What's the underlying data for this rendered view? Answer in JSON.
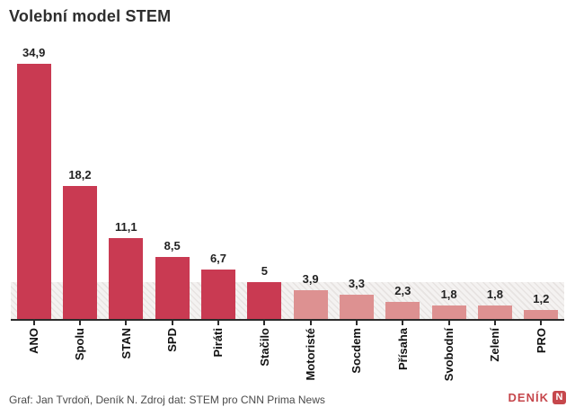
{
  "title": "Volební model STEM",
  "footer": {
    "credit": "Graf: Jan Tvrdoň, Deník N. Zdroj dat: STEM pro CNN Prima News",
    "logo_text": "DENÍK",
    "logo_badge": "N"
  },
  "colors": {
    "bar_above_threshold": "#c93a52",
    "bar_below_threshold": "#dd9191",
    "threshold_band": "#f4f2f1",
    "axis": "#2b2b2b",
    "title_text": "#2e2e2e",
    "footer_text": "#4a4a4a",
    "logo_red": "#c6474c"
  },
  "chart_data": {
    "type": "bar",
    "title": "Volební model STEM",
    "categories": [
      "ANO",
      "Spolu",
      "STAN",
      "SPD",
      "Piráti",
      "Stačilo",
      "Motoristé",
      "Socdem",
      "Přísaha",
      "Svobodní",
      "Zelení",
      "PRO"
    ],
    "values": [
      34.9,
      18.2,
      11.1,
      8.5,
      6.7,
      5,
      3.9,
      3.3,
      2.3,
      1.8,
      1.8,
      1.2
    ],
    "value_labels": [
      "34,9",
      "18,2",
      "11,1",
      "8,5",
      "6,7",
      "5",
      "3,9",
      "3,3",
      "2,3",
      "1,8",
      "1,8",
      "1,2"
    ],
    "unit": "%",
    "xlabel": "",
    "ylabel": "",
    "ylim": [
      0,
      36
    ],
    "threshold": 5,
    "threshold_band": true,
    "grid": false,
    "legend": false,
    "value_labels_position": "above-bars",
    "category_labels_rotation": -90
  }
}
